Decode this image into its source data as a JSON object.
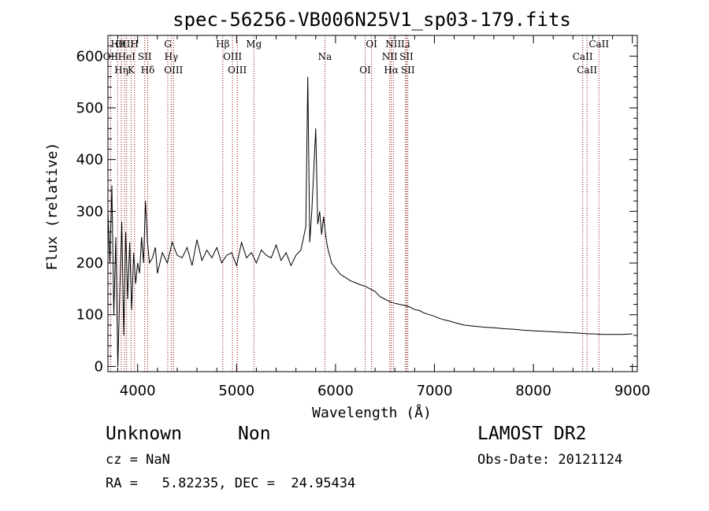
{
  "chart_data": {
    "type": "line",
    "title": "spec-56256-VB006N25V1_sp03-179.fits",
    "xlabel": "Wavelength (Å)",
    "ylabel": "Flux (relative)",
    "xlim": [
      3700,
      9050
    ],
    "ylim": [
      -10,
      640
    ],
    "xticks": [
      4000,
      5000,
      6000,
      7000,
      8000,
      9000
    ],
    "yticks": [
      0,
      100,
      200,
      300,
      400,
      500,
      600
    ],
    "series": [
      {
        "name": "flux",
        "x": [
          3700,
          3720,
          3740,
          3760,
          3780,
          3800,
          3820,
          3840,
          3860,
          3880,
          3900,
          3920,
          3940,
          3960,
          3980,
          4000,
          4020,
          4040,
          4060,
          4080,
          4100,
          4120,
          4150,
          4180,
          4200,
          4250,
          4300,
          4350,
          4400,
          4450,
          4500,
          4550,
          4600,
          4650,
          4700,
          4750,
          4800,
          4850,
          4900,
          4950,
          5000,
          5050,
          5100,
          5150,
          5200,
          5250,
          5300,
          5350,
          5400,
          5450,
          5500,
          5550,
          5600,
          5650,
          5700,
          5720,
          5740,
          5760,
          5780,
          5800,
          5820,
          5840,
          5860,
          5880,
          5900,
          5920,
          5960,
          6000,
          6050,
          6100,
          6150,
          6200,
          6250,
          6300,
          6350,
          6400,
          6450,
          6500,
          6550,
          6600,
          6650,
          6700,
          6750,
          6800,
          6850,
          6900,
          6950,
          7000,
          7050,
          7100,
          7150,
          7200,
          7300,
          7400,
          7500,
          7600,
          7700,
          7800,
          7900,
          8000,
          8100,
          8200,
          8300,
          8400,
          8500,
          8550,
          8600,
          8700,
          8800,
          8900,
          9000
        ],
        "values": [
          300,
          200,
          350,
          100,
          250,
          0,
          150,
          280,
          60,
          260,
          130,
          240,
          110,
          220,
          160,
          200,
          180,
          250,
          200,
          320,
          240,
          200,
          210,
          230,
          180,
          220,
          200,
          240,
          215,
          210,
          230,
          195,
          245,
          205,
          225,
          210,
          230,
          200,
          215,
          220,
          195,
          240,
          210,
          220,
          200,
          225,
          215,
          210,
          235,
          205,
          220,
          195,
          215,
          225,
          270,
          560,
          240,
          300,
          380,
          460,
          275,
          300,
          255,
          290,
          255,
          230,
          200,
          190,
          178,
          172,
          166,
          162,
          158,
          155,
          150,
          145,
          135,
          130,
          125,
          122,
          120,
          118,
          115,
          110,
          108,
          103,
          100,
          97,
          93,
          90,
          88,
          85,
          80,
          78,
          76,
          75,
          73,
          72,
          70,
          69,
          68,
          67,
          66,
          65,
          64,
          63,
          63,
          62,
          62,
          62,
          63
        ]
      }
    ],
    "markers": [
      {
        "label": "Hθ",
        "wavelength": 3798
      },
      {
        "label": "OII",
        "wavelength": 3727
      },
      {
        "label": "Hη",
        "wavelength": 3835
      },
      {
        "label": "OIII",
        "wavelength": 3869
      },
      {
        "label": "HeI",
        "wavelength": 3889
      },
      {
        "label": "K",
        "wavelength": 3934
      },
      {
        "label": "H",
        "wavelength": 3969
      },
      {
        "label": "SII",
        "wavelength": 4072
      },
      {
        "label": "Hδ",
        "wavelength": 4102
      },
      {
        "label": "G",
        "wavelength": 4305
      },
      {
        "label": "Hγ",
        "wavelength": 4340
      },
      {
        "label": "OIII",
        "wavelength": 4363
      },
      {
        "label": "Hβ",
        "wavelength": 4861
      },
      {
        "label": "OIII",
        "wavelength": 4959
      },
      {
        "label": "OIII",
        "wavelength": 5007
      },
      {
        "label": "Mg",
        "wavelength": 5175
      },
      {
        "label": "Na",
        "wavelength": 5893
      },
      {
        "label": "OI",
        "wavelength": 6300
      },
      {
        "label": "OI",
        "wavelength": 6364
      },
      {
        "label": "NII",
        "wavelength": 6548
      },
      {
        "label": "Hα",
        "wavelength": 6563
      },
      {
        "label": "NII",
        "wavelength": 6584
      },
      {
        "label": "SII",
        "wavelength": 6717
      },
      {
        "label": "SII",
        "wavelength": 6731
      },
      {
        "label": "Li",
        "wavelength": 6708
      },
      {
        "label": "CaII",
        "wavelength": 8498
      },
      {
        "label": "CaII",
        "wavelength": 8542
      },
      {
        "label": "CaII",
        "wavelength": 8662
      }
    ]
  },
  "info": {
    "class": "Unknown",
    "subclass": "Non",
    "survey": "LAMOST DR2",
    "cz": "cz = NaN",
    "obs_date": "Obs-Date: 20121124",
    "coords": "RA =   5.82235, DEC =  24.95434"
  },
  "colors": {
    "marker_line": "#8b0000",
    "spectrum": "#000000"
  }
}
